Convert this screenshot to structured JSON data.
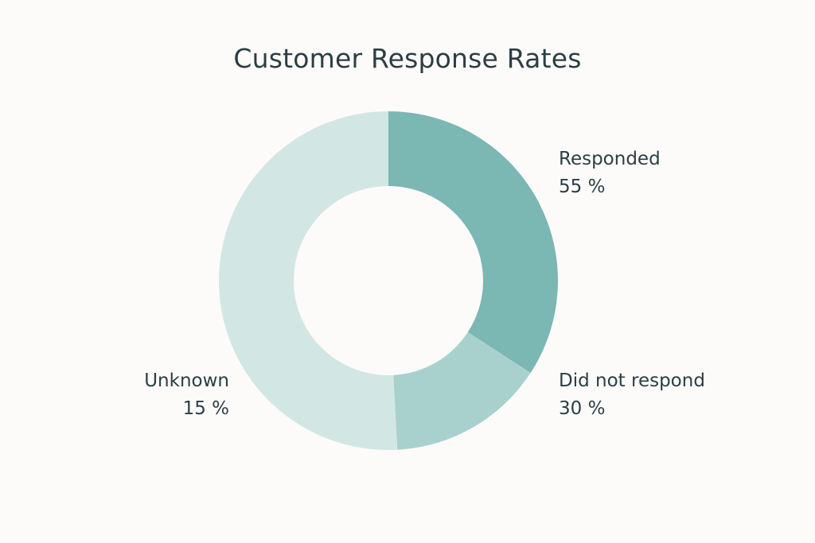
{
  "chart_data": {
    "type": "pie",
    "title": "Customer Response Rates",
    "donut": true,
    "slices": [
      {
        "name": "Responded",
        "value_label": "55 %",
        "value": 55,
        "color": "#7bb7b3"
      },
      {
        "name": "Did not respond",
        "value_label": "30 %",
        "value": 30,
        "color": "#a8d1cd"
      },
      {
        "name": "Unknown",
        "value_label": "15 %",
        "value": 15,
        "color": "#d2e7e4"
      }
    ]
  }
}
